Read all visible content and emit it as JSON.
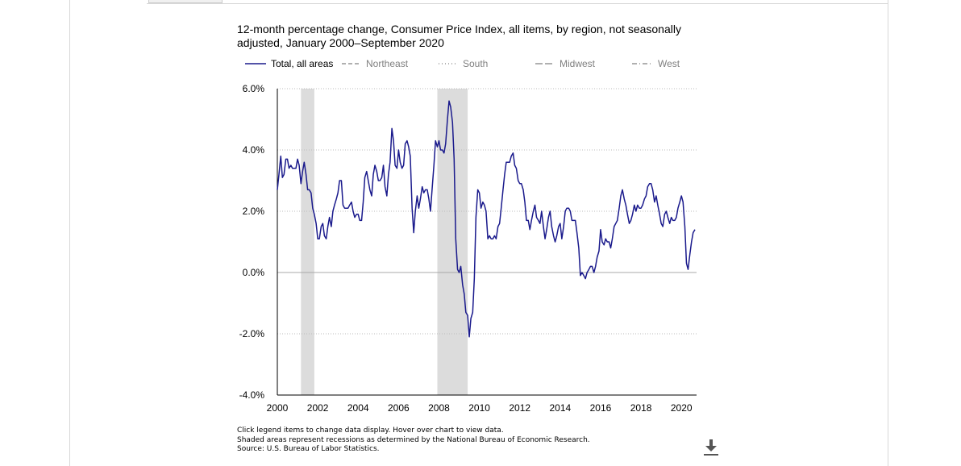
{
  "chart_data": {
    "type": "line",
    "title": "12-month percentage change, Consumer Price Index, all items, by region, not seasonally adjusted, January 2000–September 2020",
    "xlabel": "",
    "ylabel": "",
    "xlim": [
      2000.0,
      2020.75
    ],
    "ylim": [
      -4,
      6
    ],
    "x_ticks": [
      "2000",
      "2002",
      "2004",
      "2006",
      "2008",
      "2010",
      "2012",
      "2014",
      "2016",
      "2018",
      "2020"
    ],
    "y_ticks": [
      "6.0%",
      "4.0%",
      "2.0%",
      "0.0%",
      "-2.0%",
      "-4.0%"
    ],
    "grid": "horizontal dotted",
    "legend_position": "top",
    "recessions": [
      {
        "start": 2001.17,
        "end": 2001.83
      },
      {
        "start": 2007.92,
        "end": 2009.42
      }
    ],
    "series": [
      {
        "name": "Total, all areas",
        "color": "#1a1a8c",
        "style": "solid",
        "active": true,
        "points": [
          [
            2000.0,
            2.7
          ],
          [
            2000.08,
            3.2
          ],
          [
            2000.17,
            3.8
          ],
          [
            2000.25,
            3.1
          ],
          [
            2000.33,
            3.2
          ],
          [
            2000.42,
            3.7
          ],
          [
            2000.5,
            3.7
          ],
          [
            2000.58,
            3.4
          ],
          [
            2000.67,
            3.5
          ],
          [
            2000.75,
            3.4
          ],
          [
            2000.83,
            3.4
          ],
          [
            2000.92,
            3.4
          ],
          [
            2001.0,
            3.7
          ],
          [
            2001.08,
            3.5
          ],
          [
            2001.17,
            2.9
          ],
          [
            2001.25,
            3.3
          ],
          [
            2001.33,
            3.6
          ],
          [
            2001.42,
            3.2
          ],
          [
            2001.5,
            2.7
          ],
          [
            2001.58,
            2.7
          ],
          [
            2001.67,
            2.6
          ],
          [
            2001.75,
            2.1
          ],
          [
            2001.83,
            1.9
          ],
          [
            2001.92,
            1.6
          ],
          [
            2002.0,
            1.1
          ],
          [
            2002.08,
            1.1
          ],
          [
            2002.17,
            1.5
          ],
          [
            2002.25,
            1.6
          ],
          [
            2002.33,
            1.2
          ],
          [
            2002.42,
            1.1
          ],
          [
            2002.5,
            1.5
          ],
          [
            2002.58,
            1.8
          ],
          [
            2002.67,
            1.5
          ],
          [
            2002.75,
            2.0
          ],
          [
            2002.83,
            2.2
          ],
          [
            2002.92,
            2.4
          ],
          [
            2003.0,
            2.6
          ],
          [
            2003.08,
            3.0
          ],
          [
            2003.17,
            3.0
          ],
          [
            2003.25,
            2.2
          ],
          [
            2003.33,
            2.1
          ],
          [
            2003.42,
            2.1
          ],
          [
            2003.5,
            2.1
          ],
          [
            2003.58,
            2.2
          ],
          [
            2003.67,
            2.3
          ],
          [
            2003.75,
            2.0
          ],
          [
            2003.83,
            1.8
          ],
          [
            2003.92,
            1.9
          ],
          [
            2004.0,
            1.9
          ],
          [
            2004.08,
            1.7
          ],
          [
            2004.17,
            1.7
          ],
          [
            2004.25,
            2.3
          ],
          [
            2004.33,
            3.1
          ],
          [
            2004.42,
            3.3
          ],
          [
            2004.5,
            3.0
          ],
          [
            2004.58,
            2.7
          ],
          [
            2004.67,
            2.5
          ],
          [
            2004.75,
            3.2
          ],
          [
            2004.83,
            3.5
          ],
          [
            2004.92,
            3.3
          ],
          [
            2005.0,
            3.0
          ],
          [
            2005.08,
            3.0
          ],
          [
            2005.17,
            3.1
          ],
          [
            2005.25,
            3.5
          ],
          [
            2005.33,
            2.8
          ],
          [
            2005.42,
            2.5
          ],
          [
            2005.5,
            3.2
          ],
          [
            2005.58,
            3.6
          ],
          [
            2005.67,
            4.7
          ],
          [
            2005.75,
            4.3
          ],
          [
            2005.83,
            3.5
          ],
          [
            2005.92,
            3.4
          ],
          [
            2006.0,
            4.0
          ],
          [
            2006.08,
            3.6
          ],
          [
            2006.17,
            3.4
          ],
          [
            2006.25,
            3.5
          ],
          [
            2006.33,
            4.2
          ],
          [
            2006.42,
            4.3
          ],
          [
            2006.5,
            4.1
          ],
          [
            2006.58,
            3.8
          ],
          [
            2006.67,
            2.1
          ],
          [
            2006.75,
            1.3
          ],
          [
            2006.83,
            2.0
          ],
          [
            2006.92,
            2.5
          ],
          [
            2007.0,
            2.1
          ],
          [
            2007.08,
            2.4
          ],
          [
            2007.17,
            2.8
          ],
          [
            2007.25,
            2.6
          ],
          [
            2007.33,
            2.7
          ],
          [
            2007.42,
            2.7
          ],
          [
            2007.5,
            2.4
          ],
          [
            2007.58,
            2.0
          ],
          [
            2007.67,
            2.8
          ],
          [
            2007.75,
            3.5
          ],
          [
            2007.83,
            4.3
          ],
          [
            2007.92,
            4.1
          ],
          [
            2008.0,
            4.3
          ],
          [
            2008.08,
            4.0
          ],
          [
            2008.17,
            4.0
          ],
          [
            2008.25,
            3.9
          ],
          [
            2008.33,
            4.2
          ],
          [
            2008.42,
            5.0
          ],
          [
            2008.5,
            5.6
          ],
          [
            2008.58,
            5.4
          ],
          [
            2008.67,
            4.9
          ],
          [
            2008.75,
            3.7
          ],
          [
            2008.83,
            1.1
          ],
          [
            2008.92,
            0.1
          ],
          [
            2009.0,
            0.0
          ],
          [
            2009.08,
            0.2
          ],
          [
            2009.17,
            -0.4
          ],
          [
            2009.25,
            -0.7
          ],
          [
            2009.33,
            -1.3
          ],
          [
            2009.42,
            -1.4
          ],
          [
            2009.5,
            -2.1
          ],
          [
            2009.58,
            -1.5
          ],
          [
            2009.67,
            -1.3
          ],
          [
            2009.75,
            -0.2
          ],
          [
            2009.83,
            1.8
          ],
          [
            2009.92,
            2.7
          ],
          [
            2010.0,
            2.6
          ],
          [
            2010.08,
            2.1
          ],
          [
            2010.17,
            2.3
          ],
          [
            2010.25,
            2.2
          ],
          [
            2010.33,
            2.0
          ],
          [
            2010.42,
            1.1
          ],
          [
            2010.5,
            1.2
          ],
          [
            2010.58,
            1.1
          ],
          [
            2010.67,
            1.1
          ],
          [
            2010.75,
            1.2
          ],
          [
            2010.83,
            1.1
          ],
          [
            2010.92,
            1.5
          ],
          [
            2011.0,
            1.6
          ],
          [
            2011.08,
            2.1
          ],
          [
            2011.17,
            2.7
          ],
          [
            2011.25,
            3.2
          ],
          [
            2011.33,
            3.6
          ],
          [
            2011.42,
            3.6
          ],
          [
            2011.5,
            3.6
          ],
          [
            2011.58,
            3.8
          ],
          [
            2011.67,
            3.9
          ],
          [
            2011.75,
            3.5
          ],
          [
            2011.83,
            3.4
          ],
          [
            2011.92,
            3.0
          ],
          [
            2012.0,
            2.9
          ],
          [
            2012.08,
            2.9
          ],
          [
            2012.17,
            2.7
          ],
          [
            2012.25,
            2.3
          ],
          [
            2012.33,
            1.7
          ],
          [
            2012.42,
            1.7
          ],
          [
            2012.5,
            1.4
          ],
          [
            2012.58,
            1.7
          ],
          [
            2012.67,
            2.0
          ],
          [
            2012.75,
            2.2
          ],
          [
            2012.83,
            1.8
          ],
          [
            2012.92,
            1.7
          ],
          [
            2013.0,
            1.6
          ],
          [
            2013.08,
            2.0
          ],
          [
            2013.17,
            1.5
          ],
          [
            2013.25,
            1.1
          ],
          [
            2013.33,
            1.4
          ],
          [
            2013.42,
            1.8
          ],
          [
            2013.5,
            2.0
          ],
          [
            2013.58,
            1.5
          ],
          [
            2013.67,
            1.2
          ],
          [
            2013.75,
            1.0
          ],
          [
            2013.83,
            1.2
          ],
          [
            2013.92,
            1.5
          ],
          [
            2014.0,
            1.6
          ],
          [
            2014.08,
            1.1
          ],
          [
            2014.17,
            1.5
          ],
          [
            2014.25,
            2.0
          ],
          [
            2014.33,
            2.1
          ],
          [
            2014.42,
            2.1
          ],
          [
            2014.5,
            2.0
          ],
          [
            2014.58,
            1.7
          ],
          [
            2014.67,
            1.7
          ],
          [
            2014.75,
            1.7
          ],
          [
            2014.83,
            1.3
          ],
          [
            2014.92,
            0.8
          ],
          [
            2015.0,
            -0.1
          ],
          [
            2015.08,
            0.0
          ],
          [
            2015.17,
            -0.1
          ],
          [
            2015.25,
            -0.2
          ],
          [
            2015.33,
            0.0
          ],
          [
            2015.42,
            0.1
          ],
          [
            2015.5,
            0.2
          ],
          [
            2015.58,
            0.2
          ],
          [
            2015.67,
            0.0
          ],
          [
            2015.75,
            0.2
          ],
          [
            2015.83,
            0.5
          ],
          [
            2015.92,
            0.7
          ],
          [
            2016.0,
            1.4
          ],
          [
            2016.08,
            1.0
          ],
          [
            2016.17,
            0.9
          ],
          [
            2016.25,
            1.1
          ],
          [
            2016.33,
            1.0
          ],
          [
            2016.42,
            1.0
          ],
          [
            2016.5,
            0.8
          ],
          [
            2016.58,
            1.1
          ],
          [
            2016.67,
            1.5
          ],
          [
            2016.75,
            1.6
          ],
          [
            2016.83,
            1.7
          ],
          [
            2016.92,
            2.1
          ],
          [
            2017.0,
            2.5
          ],
          [
            2017.08,
            2.7
          ],
          [
            2017.17,
            2.4
          ],
          [
            2017.25,
            2.2
          ],
          [
            2017.33,
            1.9
          ],
          [
            2017.42,
            1.6
          ],
          [
            2017.5,
            1.7
          ],
          [
            2017.58,
            1.9
          ],
          [
            2017.67,
            2.2
          ],
          [
            2017.75,
            2.0
          ],
          [
            2017.83,
            2.2
          ],
          [
            2017.92,
            2.1
          ],
          [
            2018.0,
            2.1
          ],
          [
            2018.08,
            2.2
          ],
          [
            2018.17,
            2.4
          ],
          [
            2018.25,
            2.5
          ],
          [
            2018.33,
            2.8
          ],
          [
            2018.42,
            2.9
          ],
          [
            2018.5,
            2.9
          ],
          [
            2018.58,
            2.7
          ],
          [
            2018.67,
            2.3
          ],
          [
            2018.75,
            2.5
          ],
          [
            2018.83,
            2.2
          ],
          [
            2018.92,
            1.9
          ],
          [
            2019.0,
            1.6
          ],
          [
            2019.08,
            1.5
          ],
          [
            2019.17,
            1.9
          ],
          [
            2019.25,
            2.0
          ],
          [
            2019.33,
            1.8
          ],
          [
            2019.42,
            1.6
          ],
          [
            2019.5,
            1.8
          ],
          [
            2019.58,
            1.7
          ],
          [
            2019.67,
            1.7
          ],
          [
            2019.75,
            1.8
          ],
          [
            2019.83,
            2.1
          ],
          [
            2019.92,
            2.3
          ],
          [
            2020.0,
            2.5
          ],
          [
            2020.08,
            2.3
          ],
          [
            2020.17,
            1.5
          ],
          [
            2020.25,
            0.3
          ],
          [
            2020.33,
            0.1
          ],
          [
            2020.42,
            0.6
          ],
          [
            2020.5,
            1.0
          ],
          [
            2020.58,
            1.3
          ],
          [
            2020.67,
            1.4
          ]
        ]
      },
      {
        "name": "Northeast",
        "color": "#808080",
        "style": "dashed",
        "active": false
      },
      {
        "name": "South",
        "color": "#808080",
        "style": "dotted",
        "active": false
      },
      {
        "name": "Midwest",
        "color": "#808080",
        "style": "longdash",
        "active": false
      },
      {
        "name": "West",
        "color": "#808080",
        "style": "dashdot",
        "active": false
      }
    ]
  },
  "notes": {
    "line1": "Click legend items to change data display. Hover over chart to view data.",
    "line2": "Shaded areas represent recessions as determined by the National Bureau of Economic Research.",
    "line3": "Source: U.S. Bureau of Labor Statistics."
  },
  "download_icon": "download-icon"
}
